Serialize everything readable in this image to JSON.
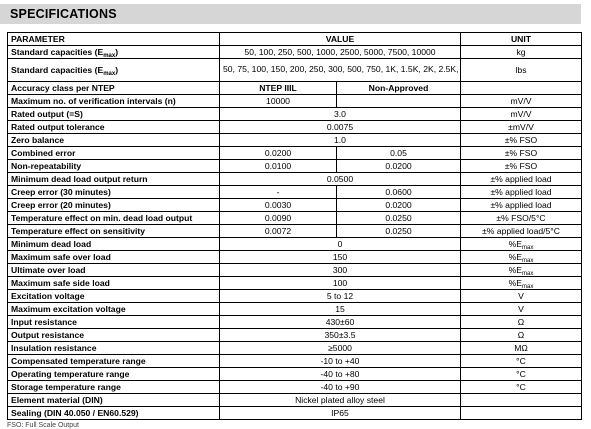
{
  "title": "SPECIFICATIONS",
  "headers": {
    "parameter": "PARAMETER",
    "value": "VALUE",
    "unit": "UNIT"
  },
  "rows": {
    "cap_kg": {
      "label": "Standard capacities (E",
      "sub": "max",
      "label_end": ")",
      "value": "50, 100, 250, 500, 1000, 2500, 5000, 7500, 10000",
      "unit": "kg"
    },
    "cap_lbs": {
      "label": "Standard capacities (E",
      "sub": "max",
      "label_end": ")",
      "value": "50, 75, 100, 150, 200, 250, 300, 500, 750, 1K, 1.5K, 2K, 2.5K, 3K, 5K, 10K, 15K, 20K",
      "unit": "lbs"
    },
    "accuracy": {
      "label": "Accuracy class per NTEP",
      "v1": "NTEP IIIL",
      "v2": "Non-Approved",
      "unit": ""
    },
    "intervals": {
      "label": "Maximum no. of verification intervals (n)",
      "v1": "10000",
      "v2": "",
      "unit": "mV/V"
    },
    "rated_output": {
      "label": "Rated output (=S)",
      "value": "3.0",
      "unit": "mV/V"
    },
    "rated_tol": {
      "label": "Rated output tolerance",
      "value": "0.0075",
      "unit": "±mV/V"
    },
    "zero": {
      "label": "Zero balance",
      "value": "1.0",
      "unit": "±% FSO"
    },
    "combined": {
      "label": "Combined error",
      "v1": "0.0200",
      "v2": "0.05",
      "unit": "±% FSO"
    },
    "nonrep": {
      "label": "Non-repeatability",
      "v1": "0.0100",
      "v2": "0.0200",
      "unit": "±% FSO"
    },
    "min_dead_return": {
      "label": "Minimum dead load output return",
      "value": "0.0500",
      "unit": "±% applied load"
    },
    "creep30": {
      "label": "Creep error (30 minutes)",
      "v1": "-",
      "v2": "0.0600",
      "unit": "±% applied load"
    },
    "creep20": {
      "label": "Creep error (20 minutes)",
      "v1": "0.0030",
      "v2": "0.0200",
      "unit": "±% applied load"
    },
    "temp_min_dead": {
      "label": "Temperature effect on min. dead load output",
      "v1": "0.0090",
      "v2": "0.0250",
      "unit": "±% FSO/5°C"
    },
    "temp_sens": {
      "label": "Temperature effect on sensitivity",
      "v1": "0.0072",
      "v2": "0.0250",
      "unit": "±% applied load/5°C"
    },
    "min_dead": {
      "label": "Minimum dead load",
      "value": "0",
      "unit": "%E",
      "unit_sub": "max"
    },
    "max_safe": {
      "label": "Maximum safe over load",
      "value": "150",
      "unit": "%E",
      "unit_sub": "max"
    },
    "ultimate": {
      "label": "Ultimate over load",
      "value": "300",
      "unit": "%E",
      "unit_sub": "max"
    },
    "side_load": {
      "label": "Maximum safe side load",
      "value": "100",
      "unit": "%E",
      "unit_sub": "max"
    },
    "excitation": {
      "label": "Excitation voltage",
      "value": "5 to 12",
      "unit": "V"
    },
    "max_excitation": {
      "label": "Maximum excitation voltage",
      "value": "15",
      "unit": "V"
    },
    "input_res": {
      "label": "Input resistance",
      "value": "430±60",
      "unit": "Ω"
    },
    "output_res": {
      "label": "Output resistance",
      "value": "350±3.5",
      "unit": "Ω"
    },
    "insulation": {
      "label": "Insulation resistance",
      "value": "≥5000",
      "unit": "MΩ"
    },
    "comp_temp": {
      "label": "Compensated temperature range",
      "value": "-10 to +40",
      "unit": "°C"
    },
    "op_temp": {
      "label": "Operating temperature range",
      "value": "-40 to +80",
      "unit": "°C"
    },
    "storage_temp": {
      "label": "Storage temperature range",
      "value": "-40 to +90",
      "unit": "°C"
    },
    "material": {
      "label": "Element material (DIN)",
      "value": "Nickel plated alloy steel",
      "unit": ""
    },
    "sealing": {
      "label": "Sealing (DIN 40.050 / EN60.529)",
      "value": "IP65",
      "unit": ""
    }
  },
  "footnote": "FSO: Full Scale Output"
}
